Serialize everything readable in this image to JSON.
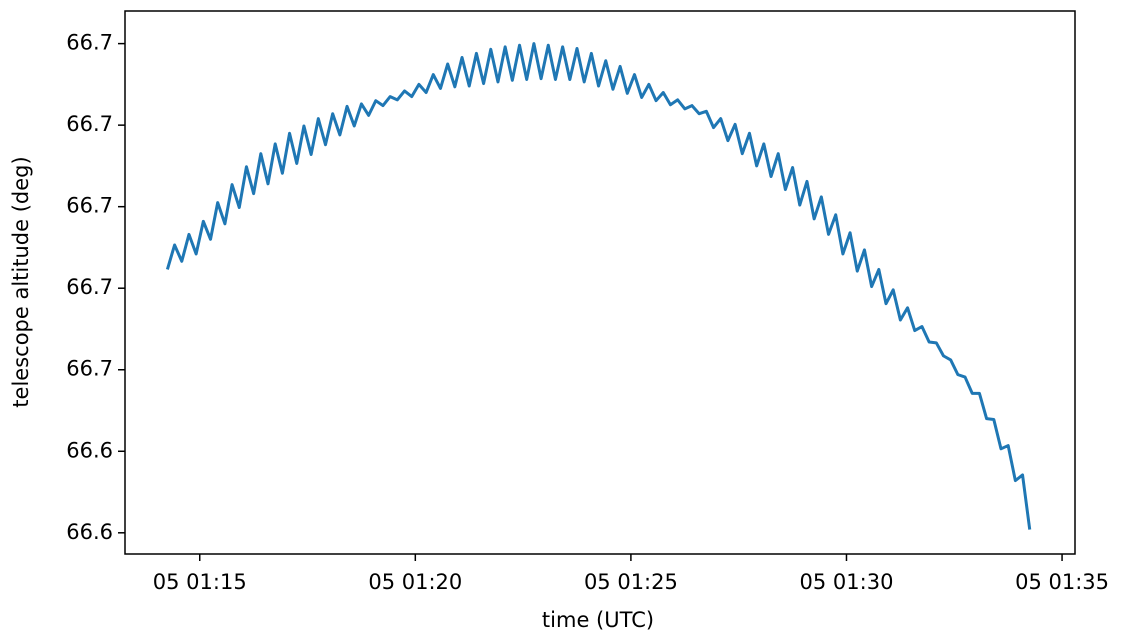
{
  "chart_data": {
    "type": "line",
    "xlabel": "time (UTC)",
    "ylabel": "telescope altitude (deg)",
    "color": "#1f77b4",
    "x": [
      "01:14:15",
      "01:14:25",
      "01:14:35",
      "01:14:45",
      "01:14:55",
      "01:15:05",
      "01:15:15",
      "01:15:25",
      "01:15:35",
      "01:15:45",
      "01:15:55",
      "01:16:05",
      "01:16:15",
      "01:16:25",
      "01:16:35",
      "01:16:45",
      "01:16:55",
      "01:17:05",
      "01:17:15",
      "01:17:25",
      "01:17:35",
      "01:17:45",
      "01:17:55",
      "01:18:05",
      "01:18:15",
      "01:18:25",
      "01:18:35",
      "01:18:45",
      "01:18:55",
      "01:19:05",
      "01:19:15",
      "01:19:25",
      "01:19:35",
      "01:19:45",
      "01:19:55",
      "01:20:05",
      "01:20:15",
      "01:20:25",
      "01:20:35",
      "01:20:45",
      "01:20:55",
      "01:21:05",
      "01:21:15",
      "01:21:25",
      "01:21:35",
      "01:21:45",
      "01:21:55",
      "01:22:05",
      "01:22:15",
      "01:22:25",
      "01:22:35",
      "01:22:45",
      "01:22:55",
      "01:23:05",
      "01:23:15",
      "01:23:25",
      "01:23:35",
      "01:23:45",
      "01:23:55",
      "01:24:05",
      "01:24:15",
      "01:24:25",
      "01:24:35",
      "01:24:45",
      "01:24:55",
      "01:25:05",
      "01:25:15",
      "01:25:25",
      "01:25:35",
      "01:25:45",
      "01:25:55",
      "01:26:05",
      "01:26:15",
      "01:26:25",
      "01:26:35",
      "01:26:45",
      "01:26:55",
      "01:27:05",
      "01:27:15",
      "01:27:25",
      "01:27:35",
      "01:27:45",
      "01:27:55",
      "01:28:05",
      "01:28:15",
      "01:28:25",
      "01:28:35",
      "01:28:45",
      "01:28:55",
      "01:29:05",
      "01:29:15",
      "01:29:25",
      "01:29:35",
      "01:29:45",
      "01:29:55",
      "01:30:05",
      "01:30:15",
      "01:30:25",
      "01:30:35",
      "01:30:45",
      "01:30:55",
      "01:31:05",
      "01:31:15",
      "01:31:25",
      "01:31:35",
      "01:31:45",
      "01:31:55",
      "01:32:05",
      "01:32:15",
      "01:32:25",
      "01:32:35",
      "01:32:45",
      "01:32:55",
      "01:33:05",
      "01:33:15",
      "01:33:25",
      "01:33:35",
      "01:33:45",
      "01:33:55",
      "01:34:05",
      "01:34:15"
    ],
    "values": [
      66.6623,
      66.6653,
      66.6633,
      66.6666,
      66.6642,
      66.6682,
      66.666,
      66.6705,
      66.6679,
      66.6727,
      66.6699,
      66.6749,
      66.6716,
      66.6765,
      66.6728,
      66.6777,
      66.6741,
      66.679,
      66.6753,
      66.6799,
      66.6764,
      66.6808,
      66.6776,
      66.6814,
      66.6788,
      66.6823,
      66.6799,
      66.6826,
      66.6812,
      66.683,
      66.6824,
      66.6835,
      66.6831,
      66.6842,
      66.6835,
      66.685,
      66.684,
      66.6862,
      66.6845,
      66.6875,
      66.6847,
      66.6883,
      66.6848,
      66.6888,
      66.6851,
      66.6893,
      66.6853,
      66.6896,
      66.6855,
      66.6898,
      66.6856,
      66.69,
      66.6857,
      66.6898,
      66.6856,
      66.6896,
      66.6856,
      66.6894,
      66.6853,
      66.6888,
      66.6848,
      66.6879,
      66.6844,
      66.6872,
      66.6839,
      66.6862,
      66.6834,
      66.685,
      66.683,
      66.684,
      66.6825,
      66.6831,
      66.682,
      66.6824,
      66.6814,
      66.6817,
      66.6797,
      66.6808,
      66.6781,
      66.6801,
      66.6765,
      66.679,
      66.675,
      66.6777,
      66.6737,
      66.6765,
      66.6721,
      66.6748,
      66.6702,
      66.6731,
      66.6685,
      66.6712,
      66.6666,
      66.669,
      66.6642,
      66.6668,
      66.6621,
      66.6647,
      66.6602,
      66.6623,
      66.6581,
      66.6598,
      66.6561,
      66.6576,
      66.6548,
      66.6553,
      66.6534,
      66.6533,
      66.6517,
      66.6512,
      66.6494,
      66.6491,
      66.6471,
      66.6471,
      66.644,
      66.6439,
      66.6403,
      66.6407,
      66.6364,
      66.6371,
      66.6304
    ],
    "xlim": [
      "01:13:16",
      "01:35:18"
    ],
    "xticks": [
      {
        "value": "01:15:00",
        "label": "05 01:15"
      },
      {
        "value": "01:20:00",
        "label": "05 01:20"
      },
      {
        "value": "01:25:00",
        "label": "05 01:25"
      },
      {
        "value": "01:30:00",
        "label": "05 01:30"
      },
      {
        "value": "01:35:00",
        "label": "05 01:35"
      }
    ],
    "ylim": [
      66.6274,
      66.694
    ],
    "yticks": [
      {
        "value": 66.63,
        "label": "66.6"
      },
      {
        "value": 66.64,
        "label": "66.6"
      },
      {
        "value": 66.65,
        "label": "66.7"
      },
      {
        "value": 66.66,
        "label": "66.7"
      },
      {
        "value": 66.67,
        "label": "66.7"
      },
      {
        "value": 66.68,
        "label": "66.7"
      },
      {
        "value": 66.69,
        "label": "66.7"
      }
    ],
    "grid": false
  }
}
